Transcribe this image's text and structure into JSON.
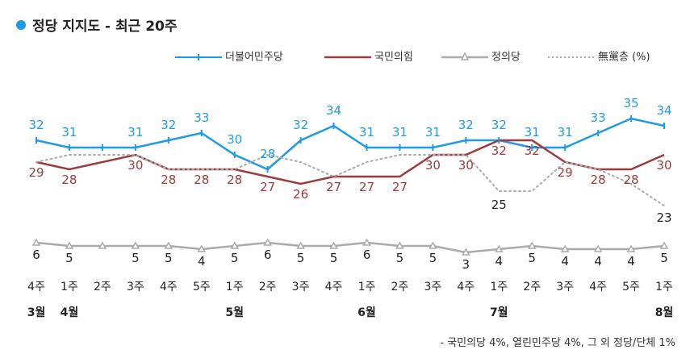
{
  "title": "정당 지지도 - 최근 20주",
  "footnote": "- 국민의당 4%, 열린민주당 4%, 그 외 정당/단체 1%",
  "colors": {
    "minju": "#1e9be6",
    "ppp": "#9c3b3b",
    "justice": "#aaaaaa",
    "none": "#aaaaaa",
    "title_dot": "#1e9be6"
  },
  "legend": [
    {
      "label": "더불어민주당",
      "key": "minju",
      "style": "solid-marker"
    },
    {
      "label": "국민의힘",
      "key": "ppp",
      "style": "solid"
    },
    {
      "label": "정의당",
      "key": "justice",
      "style": "triangle"
    },
    {
      "label": "無黨층 (%)",
      "key": "none",
      "style": "dotted"
    }
  ],
  "chart_data": {
    "type": "line",
    "title": "정당 지지도 - 최근 20주",
    "x_week_labels": [
      "4주",
      "1주",
      "2주",
      "3주",
      "4주",
      "5주",
      "1주",
      "2주",
      "3주",
      "4주",
      "1주",
      "2주",
      "3주",
      "4주",
      "1주",
      "2주",
      "3주",
      "4주",
      "5주",
      "1주"
    ],
    "x_month_labels": [
      {
        "index": 0,
        "label": "3월"
      },
      {
        "index": 1,
        "label": "4월"
      },
      {
        "index": 6,
        "label": "5월"
      },
      {
        "index": 10,
        "label": "6월"
      },
      {
        "index": 14,
        "label": "7월"
      },
      {
        "index": 19,
        "label": "8월"
      }
    ],
    "series": [
      {
        "name": "더불어민주당",
        "key": "minju",
        "values": [
          32,
          31,
          31,
          31,
          32,
          33,
          30,
          28,
          32,
          34,
          31,
          31,
          31,
          32,
          32,
          31,
          31,
          33,
          35,
          34
        ]
      },
      {
        "name": "국민의힘",
        "key": "ppp",
        "values": [
          29,
          28,
          29,
          30,
          28,
          28,
          28,
          27,
          26,
          27,
          27,
          27,
          30,
          30,
          32,
          32,
          29,
          28,
          28,
          30
        ]
      },
      {
        "name": "정의당",
        "key": "justice",
        "values": [
          6,
          5,
          5,
          5,
          5,
          4,
          5,
          6,
          5,
          5,
          6,
          5,
          5,
          3,
          4,
          5,
          4,
          4,
          4,
          5
        ]
      },
      {
        "name": "無黨층",
        "key": "none",
        "values": [
          29,
          30,
          30,
          30,
          28,
          28,
          28,
          30,
          29,
          27,
          29,
          30,
          30,
          30,
          25,
          25,
          29,
          28,
          26,
          23
        ]
      }
    ],
    "visible_labels": {
      "minju": [
        32,
        31,
        null,
        31,
        32,
        33,
        30,
        28,
        32,
        34,
        31,
        31,
        31,
        32,
        32,
        31,
        31,
        33,
        35,
        34
      ],
      "ppp": [
        29,
        28,
        null,
        30,
        28,
        28,
        28,
        27,
        26,
        27,
        27,
        27,
        30,
        30,
        32,
        32,
        29,
        28,
        28,
        30
      ],
      "justice": [
        6,
        5,
        null,
        5,
        5,
        4,
        5,
        6,
        5,
        5,
        6,
        5,
        5,
        3,
        4,
        5,
        4,
        4,
        4,
        5
      ],
      "none": [
        null,
        null,
        null,
        null,
        null,
        null,
        null,
        null,
        null,
        null,
        null,
        null,
        null,
        null,
        25,
        null,
        null,
        null,
        null,
        23
      ]
    },
    "grid": false,
    "legend_position": "top-right"
  }
}
